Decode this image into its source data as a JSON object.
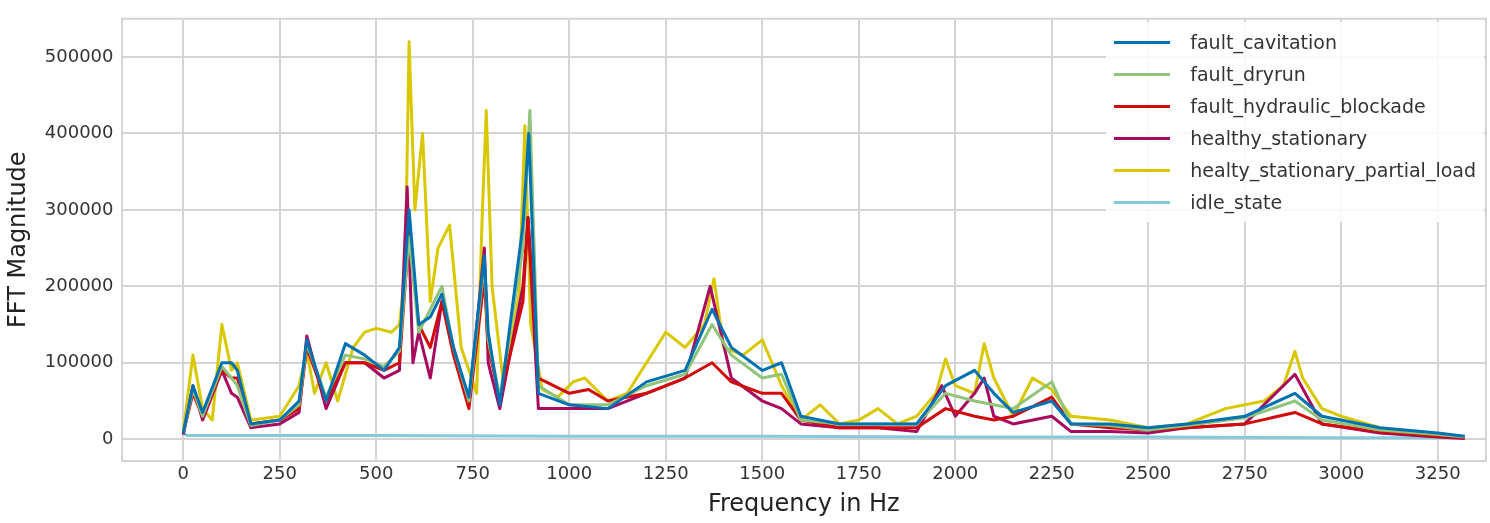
{
  "chart_data": {
    "type": "line",
    "xlabel": "Frequency in Hz",
    "ylabel": "FFT Magnitude",
    "xlim": [
      -160,
      3375
    ],
    "ylim": [
      -28000,
      550000
    ],
    "xticks": [
      0,
      250,
      500,
      750,
      1000,
      1250,
      1500,
      1750,
      2000,
      2250,
      2500,
      2750,
      3000,
      3250
    ],
    "yticks": [
      0,
      100000,
      200000,
      300000,
      400000,
      500000
    ],
    "grid": true,
    "legend": "top right",
    "marker": "none",
    "line_style": "solid",
    "series": [
      {
        "name": "fault_cavitation",
        "color": "#0072b2",
        "x": [
          0,
          25,
          50,
          100,
          125,
          140,
          175,
          250,
          300,
          320,
          370,
          420,
          470,
          520,
          560,
          585,
          610,
          640,
          670,
          700,
          740,
          780,
          790,
          820,
          880,
          895,
          920,
          1000,
          1100,
          1200,
          1300,
          1370,
          1420,
          1500,
          1550,
          1600,
          1700,
          1800,
          1900,
          1975,
          2050,
          2100,
          2150,
          2250,
          2300,
          2400,
          2500,
          2600,
          2750,
          2880,
          2950,
          3100,
          3250,
          3320
        ],
        "values": [
          8000,
          70000,
          35000,
          100000,
          100000,
          90000,
          20000,
          25000,
          50000,
          130000,
          50000,
          125000,
          110000,
          90000,
          120000,
          300000,
          150000,
          160000,
          190000,
          120000,
          55000,
          240000,
          140000,
          45000,
          280000,
          400000,
          60000,
          45000,
          40000,
          75000,
          90000,
          170000,
          120000,
          90000,
          100000,
          30000,
          20000,
          20000,
          20000,
          70000,
          90000,
          60000,
          35000,
          50000,
          20000,
          20000,
          15000,
          20000,
          30000,
          60000,
          30000,
          15000,
          8000,
          4000
        ]
      },
      {
        "name": "fault_dryrun",
        "color": "#8fc47a",
        "x": [
          0,
          25,
          50,
          100,
          125,
          140,
          175,
          250,
          300,
          320,
          370,
          420,
          470,
          520,
          560,
          585,
          610,
          640,
          670,
          700,
          740,
          780,
          790,
          820,
          880,
          898,
          920,
          1000,
          1100,
          1200,
          1300,
          1370,
          1420,
          1500,
          1550,
          1600,
          1700,
          1800,
          1900,
          1975,
          2050,
          2100,
          2150,
          2250,
          2300,
          2400,
          2500,
          2600,
          2750,
          2880,
          2950,
          3100,
          3250,
          3320
        ],
        "values": [
          8000,
          65000,
          30000,
          95000,
          80000,
          70000,
          18000,
          25000,
          45000,
          125000,
          55000,
          110000,
          105000,
          95000,
          115000,
          265000,
          140000,
          170000,
          200000,
          120000,
          50000,
          230000,
          130000,
          55000,
          250000,
          430000,
          70000,
          45000,
          45000,
          70000,
          85000,
          150000,
          110000,
          80000,
          85000,
          25000,
          20000,
          20000,
          20000,
          60000,
          50000,
          45000,
          40000,
          75000,
          20000,
          18000,
          12000,
          18000,
          28000,
          50000,
          25000,
          12000,
          6000,
          3000
        ]
      },
      {
        "name": "fault_hydraulic_blockade",
        "color": "#d10a0a",
        "x": [
          0,
          25,
          50,
          100,
          125,
          140,
          175,
          250,
          300,
          320,
          370,
          420,
          470,
          520,
          560,
          585,
          610,
          640,
          670,
          700,
          740,
          780,
          790,
          820,
          880,
          893,
          920,
          1000,
          1050,
          1100,
          1200,
          1300,
          1370,
          1420,
          1500,
          1550,
          1600,
          1700,
          1800,
          1900,
          1975,
          2050,
          2100,
          2150,
          2250,
          2300,
          2400,
          2500,
          2600,
          2750,
          2880,
          2950,
          3100,
          3250,
          3320
        ],
        "values": [
          8000,
          60000,
          30000,
          90000,
          80000,
          80000,
          20000,
          25000,
          40000,
          120000,
          50000,
          100000,
          100000,
          90000,
          100000,
          270000,
          150000,
          120000,
          180000,
          110000,
          40000,
          210000,
          120000,
          55000,
          180000,
          290000,
          80000,
          60000,
          65000,
          50000,
          60000,
          80000,
          100000,
          75000,
          60000,
          60000,
          25000,
          15000,
          15000,
          15000,
          40000,
          30000,
          25000,
          30000,
          55000,
          20000,
          15000,
          12000,
          15000,
          20000,
          35000,
          20000,
          10000,
          4000,
          2000
        ]
      },
      {
        "name": "healthy_stationary",
        "color": "#a80a5f",
        "x": [
          0,
          25,
          50,
          100,
          125,
          140,
          175,
          250,
          300,
          320,
          370,
          420,
          470,
          520,
          560,
          580,
          595,
          610,
          640,
          670,
          700,
          740,
          780,
          790,
          820,
          880,
          893,
          920,
          1000,
          1100,
          1200,
          1300,
          1365,
          1420,
          1500,
          1550,
          1600,
          1700,
          1800,
          1900,
          1965,
          2000,
          2050,
          2075,
          2100,
          2150,
          2250,
          2300,
          2400,
          2500,
          2600,
          2750,
          2880,
          2950,
          3100,
          3250,
          3320
        ],
        "values": [
          6000,
          70000,
          25000,
          90000,
          60000,
          55000,
          15000,
          20000,
          35000,
          135000,
          40000,
          100000,
          100000,
          80000,
          90000,
          330000,
          100000,
          140000,
          80000,
          180000,
          120000,
          45000,
          250000,
          100000,
          40000,
          200000,
          290000,
          40000,
          40000,
          40000,
          60000,
          80000,
          200000,
          80000,
          50000,
          40000,
          20000,
          15000,
          15000,
          10000,
          70000,
          30000,
          60000,
          80000,
          30000,
          20000,
          30000,
          10000,
          10000,
          8000,
          15000,
          20000,
          85000,
          20000,
          8000,
          3000,
          1000
        ]
      },
      {
        "name": "healty_stationary_partial_load",
        "color": "#d9c800",
        "x": [
          0,
          25,
          50,
          75,
          100,
          125,
          140,
          175,
          250,
          300,
          320,
          340,
          370,
          400,
          440,
          470,
          500,
          540,
          560,
          575,
          585,
          600,
          620,
          640,
          660,
          690,
          720,
          760,
          775,
          785,
          800,
          830,
          870,
          885,
          900,
          930,
          970,
          1010,
          1040,
          1100,
          1150,
          1200,
          1250,
          1300,
          1350,
          1375,
          1400,
          1450,
          1500,
          1550,
          1600,
          1650,
          1700,
          1750,
          1800,
          1850,
          1900,
          1950,
          1975,
          2000,
          2050,
          2075,
          2100,
          2150,
          2200,
          2250,
          2300,
          2400,
          2500,
          2600,
          2700,
          2800,
          2850,
          2880,
          2900,
          2950,
          3000,
          3100,
          3200,
          3320
        ],
        "values": [
          10000,
          110000,
          40000,
          25000,
          150000,
          90000,
          100000,
          25000,
          30000,
          70000,
          115000,
          60000,
          100000,
          50000,
          120000,
          140000,
          145000,
          140000,
          150000,
          220000,
          520000,
          300000,
          400000,
          180000,
          250000,
          280000,
          120000,
          60000,
          300000,
          430000,
          200000,
          70000,
          190000,
          410000,
          150000,
          65000,
          55000,
          75000,
          80000,
          50000,
          60000,
          100000,
          140000,
          120000,
          150000,
          210000,
          120000,
          110000,
          130000,
          70000,
          25000,
          45000,
          20000,
          25000,
          40000,
          20000,
          30000,
          60000,
          105000,
          70000,
          60000,
          125000,
          80000,
          30000,
          80000,
          65000,
          30000,
          25000,
          15000,
          20000,
          40000,
          50000,
          70000,
          115000,
          80000,
          40000,
          30000,
          15000,
          8000,
          3000
        ]
      },
      {
        "name": "idle_state",
        "color": "#83cbdb",
        "x": [
          0,
          10,
          500,
          1000,
          1500,
          2000,
          2500,
          3000,
          3320
        ],
        "values": [
          8000,
          5000,
          5000,
          4000,
          4000,
          3000,
          3000,
          2000,
          2000
        ]
      }
    ]
  }
}
